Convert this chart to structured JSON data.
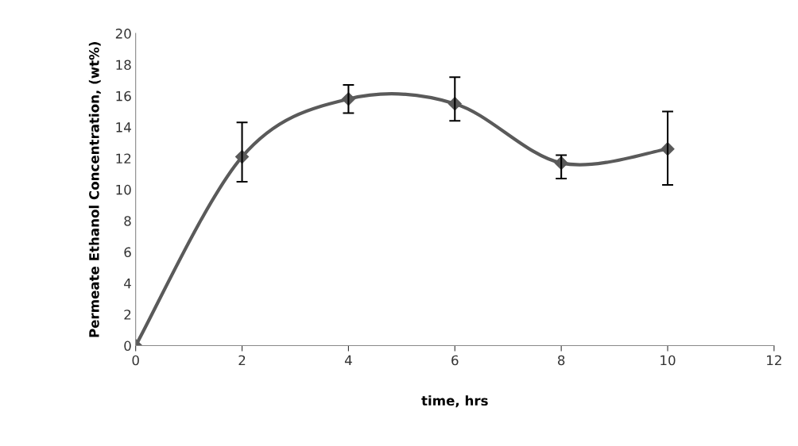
{
  "chart_data": {
    "type": "line",
    "xlabel": "time, hrs",
    "ylabel": "Permeate Ethanol Concentration, (wt%)",
    "x": [
      0,
      2,
      4,
      6,
      8,
      10
    ],
    "series": [
      {
        "color": "#5a5a5a",
        "values": [
          0,
          12.1,
          15.8,
          15.5,
          11.7,
          12.6
        ],
        "errors": [
          null,
          [
            10.5,
            14.3
          ],
          [
            14.9,
            16.7
          ],
          [
            14.4,
            17.2
          ],
          [
            10.7,
            12.2
          ],
          [
            10.3,
            15.0
          ]
        ]
      }
    ],
    "xlim": [
      0,
      12
    ],
    "xticks": [
      0,
      2,
      4,
      6,
      8,
      10,
      12
    ],
    "ylim": [
      0,
      20
    ],
    "yticks": [
      0,
      2,
      4,
      6,
      8,
      10,
      12,
      14,
      16,
      18,
      20
    ],
    "grid": false,
    "legend": false,
    "marker": "diamond",
    "line_style": "solid"
  }
}
